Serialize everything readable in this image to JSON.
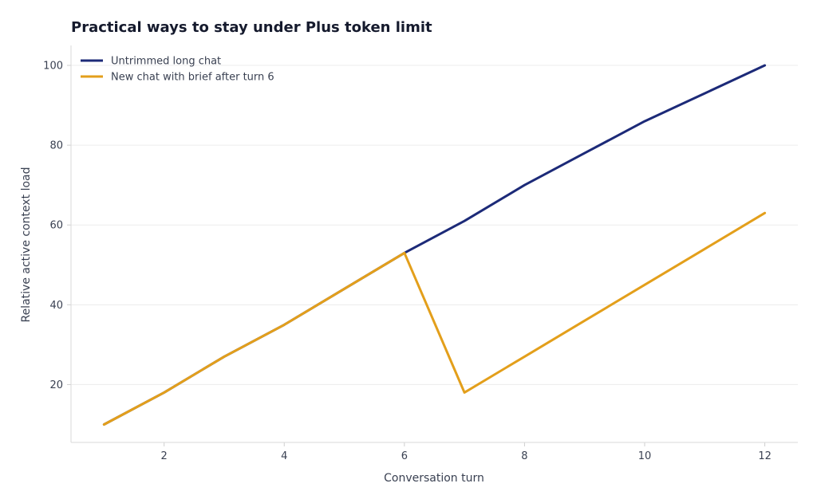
{
  "chart_data": {
    "type": "line",
    "title": "Practical ways to stay under Plus token limit",
    "xlabel": "Conversation turn",
    "ylabel": "Relative active context load",
    "xlim": [
      0.45,
      12.55
    ],
    "ylim": [
      5.5,
      105
    ],
    "xticks": [
      2,
      4,
      6,
      8,
      10,
      12
    ],
    "yticks": [
      20,
      40,
      60,
      80,
      100
    ],
    "grid": "horizontal",
    "legend_position": "top-left",
    "series": [
      {
        "name": "Untrimmed long chat",
        "color": "#1c2a78",
        "x": [
          1,
          2,
          3,
          4,
          5,
          6,
          7,
          8,
          9,
          10,
          11,
          12
        ],
        "y": [
          10,
          18,
          27,
          35,
          44,
          53,
          61,
          70,
          78,
          86,
          93,
          100
        ]
      },
      {
        "name": "New chat with brief after turn 6",
        "color": "#e39f1b",
        "x": [
          1,
          2,
          3,
          4,
          5,
          6,
          7,
          8,
          9,
          10,
          11,
          12
        ],
        "y": [
          10,
          18,
          27,
          35,
          44,
          53,
          18,
          27,
          36,
          45,
          54,
          63
        ]
      }
    ]
  }
}
